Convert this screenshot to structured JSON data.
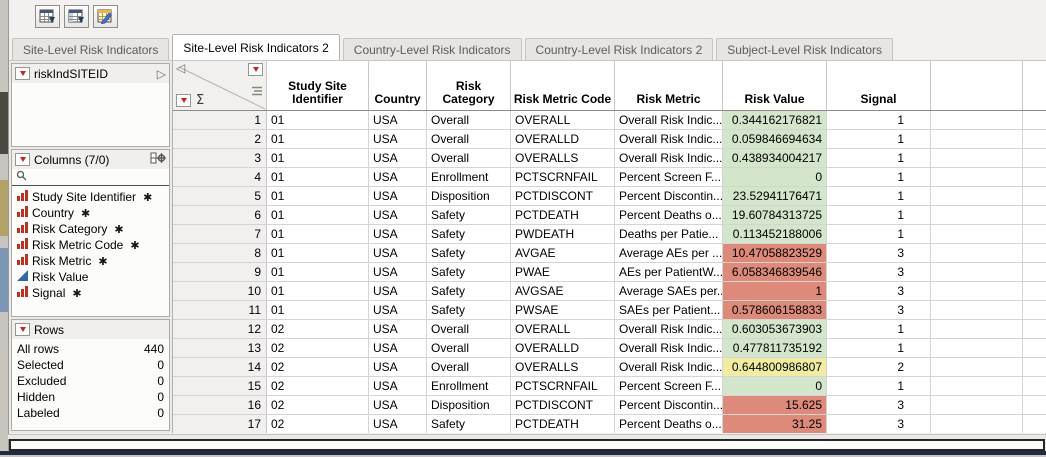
{
  "toolbar": {
    "icons": [
      {
        "name": "new-data-table-icon"
      },
      {
        "name": "split-table-icon"
      },
      {
        "name": "edit-table-icon"
      }
    ]
  },
  "tabs": [
    {
      "label": "Site-Level Risk Indicators",
      "active": false
    },
    {
      "label": "Site-Level Risk Indicators 2",
      "active": true
    },
    {
      "label": "Country-Level Risk Indicators",
      "active": false
    },
    {
      "label": "Country-Level Risk Indicators 2",
      "active": false
    },
    {
      "label": "Subject-Level Risk Indicators",
      "active": false
    }
  ],
  "sidebar": {
    "table_panel": {
      "title": "riskIndSITEID",
      "expand_icon": "right-triangle-icon"
    },
    "columns_panel": {
      "title": "Columns (7/0)",
      "search_icon": "search-icon",
      "items": [
        {
          "label": "Study Site Identifier",
          "icon": "nominal-bars-icon",
          "starred": true
        },
        {
          "label": "Country",
          "icon": "nominal-bars-icon",
          "starred": true
        },
        {
          "label": "Risk Category",
          "icon": "nominal-bars-icon",
          "starred": true
        },
        {
          "label": "Risk Metric Code",
          "icon": "nominal-bars-icon",
          "starred": true
        },
        {
          "label": "Risk Metric",
          "icon": "nominal-bars-icon",
          "starred": true
        },
        {
          "label": "Risk Value",
          "icon": "continuous-triangle-icon",
          "starred": false
        },
        {
          "label": "Signal",
          "icon": "nominal-bars-icon",
          "starred": true
        }
      ]
    },
    "rows_panel": {
      "title": "Rows",
      "stats": [
        {
          "label": "All rows",
          "value": "440"
        },
        {
          "label": "Selected",
          "value": "0"
        },
        {
          "label": "Excluded",
          "value": "0"
        },
        {
          "label": "Hidden",
          "value": "0"
        },
        {
          "label": "Labeled",
          "value": "0"
        }
      ]
    }
  },
  "table": {
    "columns": [
      "Study Site Identifier",
      "Country",
      "Risk Category",
      "Risk Metric Code",
      "Risk Metric",
      "Risk Value",
      "Signal"
    ],
    "rows": [
      {
        "n": "1",
        "site": "01",
        "country": "USA",
        "category": "Overall",
        "code": "OVERALL",
        "metric": "Overall Risk Indic...",
        "value": "0.344162176821",
        "value_color": "green",
        "signal": "1"
      },
      {
        "n": "2",
        "site": "01",
        "country": "USA",
        "category": "Overall",
        "code": "OVERALLD",
        "metric": "Overall Risk Indic...",
        "value": "0.059846694634",
        "value_color": "green",
        "signal": "1"
      },
      {
        "n": "3",
        "site": "01",
        "country": "USA",
        "category": "Overall",
        "code": "OVERALLS",
        "metric": "Overall Risk Indic...",
        "value": "0.438934004217",
        "value_color": "green",
        "signal": "1"
      },
      {
        "n": "4",
        "site": "01",
        "country": "USA",
        "category": "Enrollment",
        "code": "PCTSCRNFAIL",
        "metric": "Percent Screen F...",
        "value": "0",
        "value_color": "green",
        "signal": "1"
      },
      {
        "n": "5",
        "site": "01",
        "country": "USA",
        "category": "Disposition",
        "code": "PCTDISCONT",
        "metric": "Percent Discontin...",
        "value": "23.52941176471",
        "value_color": "green",
        "signal": "1"
      },
      {
        "n": "6",
        "site": "01",
        "country": "USA",
        "category": "Safety",
        "code": "PCTDEATH",
        "metric": "Percent Deaths o...",
        "value": "19.60784313725",
        "value_color": "green",
        "signal": "1"
      },
      {
        "n": "7",
        "site": "01",
        "country": "USA",
        "category": "Safety",
        "code": "PWDEATH",
        "metric": "Deaths per Patie...",
        "value": "0.113452188006",
        "value_color": "green",
        "signal": "1"
      },
      {
        "n": "8",
        "site": "01",
        "country": "USA",
        "category": "Safety",
        "code": "AVGAE",
        "metric": "Average AEs per ...",
        "value": "10.47058823529",
        "value_color": "red",
        "signal": "3"
      },
      {
        "n": "9",
        "site": "01",
        "country": "USA",
        "category": "Safety",
        "code": "PWAE",
        "metric": "AEs per PatientW...",
        "value": "6.058346839546",
        "value_color": "red",
        "signal": "3"
      },
      {
        "n": "10",
        "site": "01",
        "country": "USA",
        "category": "Safety",
        "code": "AVGSAE",
        "metric": "Average SAEs per...",
        "value": "1",
        "value_color": "red",
        "signal": "3"
      },
      {
        "n": "11",
        "site": "01",
        "country": "USA",
        "category": "Safety",
        "code": "PWSAE",
        "metric": "SAEs per Patient...",
        "value": "0.578606158833",
        "value_color": "red",
        "signal": "3"
      },
      {
        "n": "12",
        "site": "02",
        "country": "USA",
        "category": "Overall",
        "code": "OVERALL",
        "metric": "Overall Risk Indic...",
        "value": "0.603053673903",
        "value_color": "green",
        "signal": "1"
      },
      {
        "n": "13",
        "site": "02",
        "country": "USA",
        "category": "Overall",
        "code": "OVERALLD",
        "metric": "Overall Risk Indic...",
        "value": "0.477811735192",
        "value_color": "green",
        "signal": "1"
      },
      {
        "n": "14",
        "site": "02",
        "country": "USA",
        "category": "Overall",
        "code": "OVERALLS",
        "metric": "Overall Risk Indic...",
        "value": "0.644800986807",
        "value_color": "yellow",
        "signal": "2"
      },
      {
        "n": "15",
        "site": "02",
        "country": "USA",
        "category": "Enrollment",
        "code": "PCTSCRNFAIL",
        "metric": "Percent Screen F...",
        "value": "0",
        "value_color": "green",
        "signal": "1"
      },
      {
        "n": "16",
        "site": "02",
        "country": "USA",
        "category": "Disposition",
        "code": "PCTDISCONT",
        "metric": "Percent Discontin...",
        "value": "15.625",
        "value_color": "red",
        "signal": "3"
      },
      {
        "n": "17",
        "site": "02",
        "country": "USA",
        "category": "Safety",
        "code": "PCTDEATH",
        "metric": "Percent Deaths o...",
        "value": "31.25",
        "value_color": "red",
        "signal": "3"
      }
    ]
  },
  "colors": {
    "green": "#d3e5ca",
    "red": "#de8a7b",
    "yellow": "#f0eda2",
    "accent_red_triangle": "#c4281e"
  }
}
